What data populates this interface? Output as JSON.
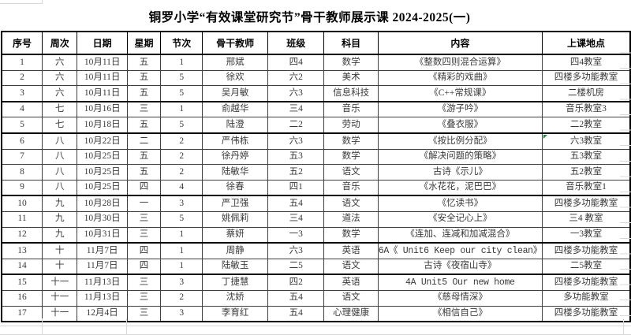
{
  "title": "铜罗小学“有效课堂研究节”骨干教师展示课 2024-2025(一)",
  "table": {
    "headers": [
      "序号",
      "周次",
      "日期",
      "星期",
      "节次",
      "骨干教师",
      "班级",
      "科目",
      "内容",
      "上课地点"
    ],
    "rows": [
      [
        "1",
        "六",
        "10月11日",
        "五",
        "1",
        "邢斌",
        "四4",
        "数学",
        "《整数四则混合运算》",
        "四4教室"
      ],
      [
        "2",
        "六",
        "10月11日",
        "五",
        "5",
        "徐欢",
        "六2",
        "美术",
        "《精彩的戏曲》",
        "四楼多功能教室"
      ],
      [
        "3",
        "六",
        "10月11日",
        "五",
        "5",
        "吴月敏",
        "六3",
        "信息科技",
        "《C++常规课》",
        "二楼机房"
      ],
      [
        "4",
        "七",
        "10月16日",
        "三",
        "1",
        "俞越华",
        "三4",
        "音乐",
        "《游子吟》",
        "音乐教室3"
      ],
      [
        "5",
        "七",
        "10月18日",
        "五",
        "5",
        "陆澄",
        "二2",
        "劳动",
        "《叠衣服》",
        "二2教室"
      ],
      [
        "6",
        "八",
        "10月22日",
        "二",
        "2",
        "严伟栋",
        "六3",
        "数学",
        "《按比例分配》",
        "六3教室"
      ],
      [
        "7",
        "八",
        "10月25日",
        "五",
        "2",
        "徐丹婷",
        "五3",
        "数学",
        "《解决问题的策略》",
        "五3教室"
      ],
      [
        "8",
        "八",
        "10月25日",
        "五",
        "2",
        "陆敏华",
        "五2",
        "语文",
        "古诗《示儿》",
        "五2教室"
      ],
      [
        "9",
        "八",
        "10月25日",
        "四",
        "4",
        "徐春",
        "四1",
        "音乐",
        "《水花花，泥巴巴》",
        "音乐教室1"
      ],
      [
        "10",
        "九",
        "10月28日",
        "一",
        "3",
        "严卫强",
        "五4",
        "语文",
        "《忆读书》",
        "四楼多功能教室"
      ],
      [
        "11",
        "九",
        "10月30日",
        "三",
        "5",
        "姚佩莉",
        "三4",
        "道法",
        "《安全记心上》",
        "三4 教室"
      ],
      [
        "12",
        "九",
        "10月31日",
        "三",
        "1",
        "蔡妍",
        "一3",
        "数学",
        "《连加、连减和加减混合》",
        "一3教室"
      ],
      [
        "13",
        "十",
        "11月7日",
        "四",
        "1",
        "周静",
        "六3",
        "英语",
        "6A《 Unit6 Keep our city clean》",
        "四楼多功能教室"
      ],
      [
        "14",
        "十",
        "11月7日",
        "四",
        "1",
        "陆敏玉",
        "二5",
        "语文",
        "古诗《夜宿山寺》",
        "二5教室"
      ],
      [
        "15",
        "十一",
        "11月13日",
        "三",
        "3",
        "丁捷慧",
        "四2",
        "英语",
        "4A Unit5 Our new home",
        "四楼多功能教室"
      ],
      [
        "16",
        "十一",
        "11月13日",
        "三",
        "2",
        "沈娇",
        "五4",
        "语文",
        "《慈母情深》",
        "多功能教室"
      ],
      [
        "17",
        "十一",
        "12月4日",
        "三",
        "3",
        "李育红",
        "五4",
        "心理健康",
        "《相信自己》",
        "四楼多功能教室"
      ]
    ],
    "group_break_after": [
      3,
      5,
      9,
      12,
      14
    ],
    "error_marker": {
      "row": 6,
      "column": "上课地点",
      "icon": "error-triangle-icon"
    }
  },
  "colors": {
    "background": "#ffffff",
    "table_border": "#000000",
    "inner_border": "#3f3f3f",
    "faint_gridline": "#d9d9d9",
    "text": "#3a3a3a",
    "error_triangle": "#1e8e3e"
  }
}
